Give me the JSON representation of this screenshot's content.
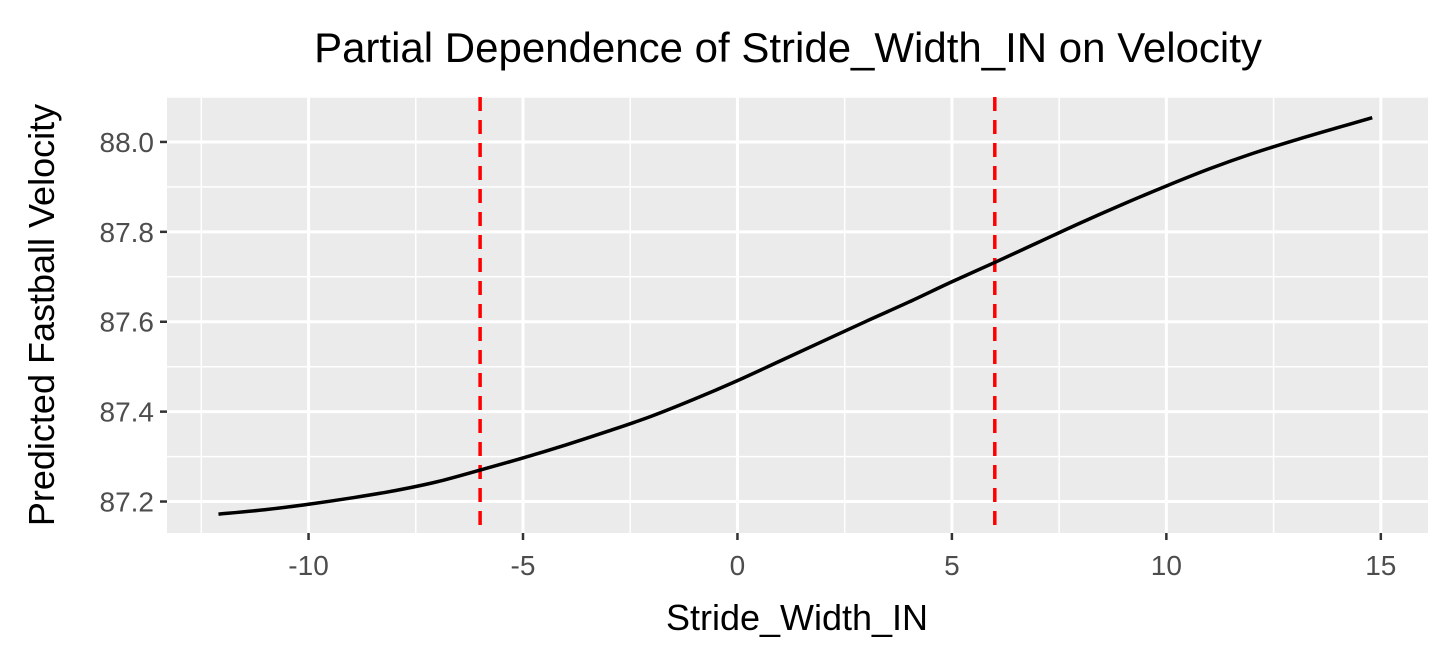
{
  "chart_data": {
    "type": "line",
    "title": "Partial Dependence of Stride_Width_IN on Velocity",
    "xlabel": "Stride_Width_IN",
    "ylabel": "Predicted Fastball Velocity",
    "xlim": [
      -13.3,
      16.1
    ],
    "ylim": [
      87.13,
      88.1
    ],
    "x_ticks": [
      -10,
      -5,
      0,
      5,
      10,
      15
    ],
    "x_tick_labels": [
      "-10",
      "-5",
      "0",
      "5",
      "10",
      "15"
    ],
    "y_ticks": [
      87.2,
      87.4,
      87.6,
      87.8,
      88.0
    ],
    "y_tick_labels": [
      "87.2",
      "87.4",
      "87.6",
      "87.8",
      "88.0"
    ],
    "grid": true,
    "series": [
      {
        "color": "#000000",
        "x": [
          -12.1,
          -11,
          -10,
          -9,
          -8,
          -7,
          -6,
          -5,
          -4,
          -3,
          -2,
          -1,
          0,
          1,
          2,
          3,
          4,
          5,
          6,
          7,
          8,
          9,
          10,
          11,
          12,
          13,
          14,
          14.8
        ],
        "y": [
          87.172,
          87.182,
          87.194,
          87.208,
          87.224,
          87.244,
          87.27,
          87.297,
          87.326,
          87.357,
          87.39,
          87.428,
          87.469,
          87.513,
          87.557,
          87.601,
          87.644,
          87.689,
          87.732,
          87.776,
          87.82,
          87.862,
          87.902,
          87.94,
          87.974,
          88.004,
          88.032,
          88.054
        ]
      }
    ],
    "reference_lines": [
      {
        "orientation": "vertical",
        "x": -6,
        "style": "dashed",
        "color": "#ff0000"
      },
      {
        "orientation": "vertical",
        "x": 6,
        "style": "dashed",
        "color": "#ff0000"
      }
    ],
    "colors": {
      "panel_background": "#ebebeb",
      "grid": "#ffffff",
      "line": "#000000",
      "reference": "#ff0000",
      "tick_text": "#4d4d4d",
      "text": "#000000"
    }
  }
}
